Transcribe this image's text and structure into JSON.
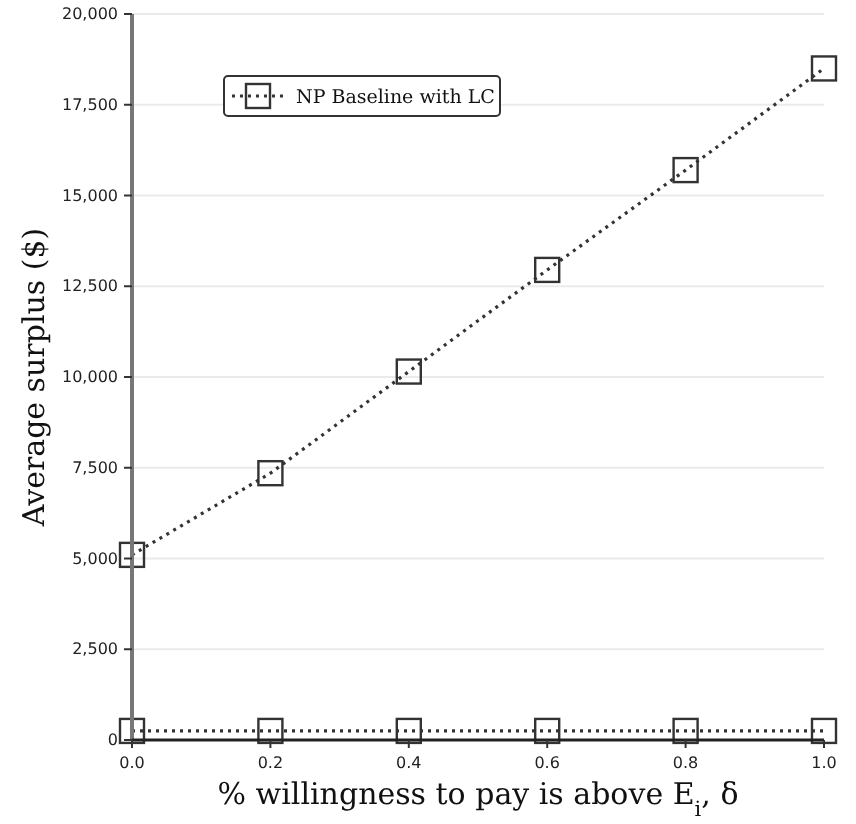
{
  "chart_data": {
    "type": "line",
    "xlabel": "% willingness to pay is above E$_{i}$, δ",
    "ylabel": "Average surplus ($)",
    "x": [
      0,
      0.2,
      0.4,
      0.6,
      0.8,
      1.0
    ],
    "series": [
      {
        "name": "NP Baseline with LC",
        "color": "#333333",
        "values": [
          5100,
          7350,
          10150,
          12950,
          15700,
          18500
        ]
      },
      {
        "color": "#333333",
        "values": [
          250,
          250,
          250,
          250,
          250,
          250
        ]
      }
    ],
    "xlim": [
      0,
      1
    ],
    "ylim": [
      0,
      20000
    ],
    "xticks": [
      {
        "value": 0,
        "label": "0.0"
      },
      {
        "value": 0.2,
        "label": "0.2"
      },
      {
        "value": 0.4,
        "label": "0.4"
      },
      {
        "value": 0.6,
        "label": "0.6"
      },
      {
        "value": 0.8,
        "label": "0.8"
      },
      {
        "value": 1,
        "label": "1.0"
      }
    ],
    "yticks": [
      0,
      {
        "value": 2500,
        "label": "2,500"
      },
      {
        "value": 5000,
        "label": "5,000"
      },
      {
        "value": 7500,
        "label": "7,500"
      },
      {
        "value": 10000,
        "label": "10,000"
      },
      {
        "value": 12500,
        "label": "12,500"
      },
      {
        "value": 15000,
        "label": "15,000"
      },
      {
        "value": 17500,
        "label": "17,500"
      },
      {
        "value": 20000,
        "label": "20,000"
      }
    ],
    "grid": "y",
    "legend": "top left",
    "marker": "square",
    "line_style": "dotted"
  }
}
